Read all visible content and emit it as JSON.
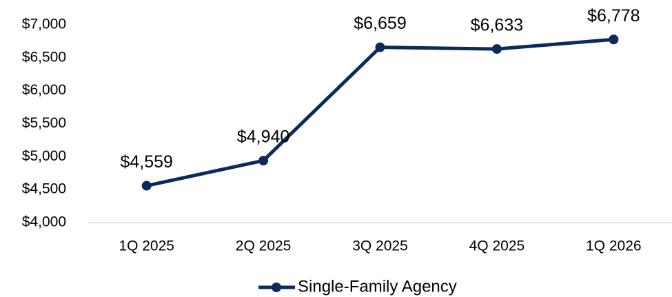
{
  "chart_data": {
    "type": "line",
    "categories": [
      "1Q 2025",
      "2Q 2025",
      "3Q 2025",
      "4Q 2025",
      "1Q 2026"
    ],
    "series": [
      {
        "name": "Single-Family Agency",
        "color": "#0c2a5b",
        "values": [
          4559,
          4940,
          6659,
          6633,
          6778
        ],
        "value_labels": [
          "$4,559",
          "$4,940",
          "$6,659",
          "$6,633",
          "$6,778"
        ]
      }
    ],
    "ylim": [
      4000,
      7000
    ],
    "yticks": [
      {
        "value": 4000,
        "label": "$4,000"
      },
      {
        "value": 4500,
        "label": "$4,500"
      },
      {
        "value": 5000,
        "label": "$5,000"
      },
      {
        "value": 5500,
        "label": "$5,500"
      },
      {
        "value": 6000,
        "label": "$6,000"
      },
      {
        "value": 6500,
        "label": "$6,500"
      },
      {
        "value": 7000,
        "label": "$7,000"
      }
    ],
    "grid": false,
    "legend": "bottom"
  }
}
